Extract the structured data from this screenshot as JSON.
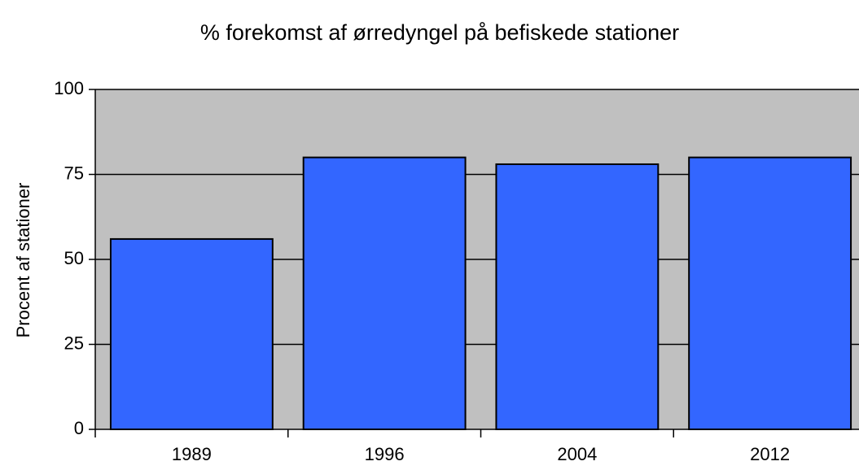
{
  "chart_data": {
    "type": "bar",
    "title": "% forekomst af ørredyngel på befiskede stationer",
    "y_label": "Procent af stationer",
    "categories": [
      "1989",
      "1996",
      "2004",
      "2012"
    ],
    "values": [
      56,
      80,
      78,
      80
    ],
    "color": "#3366ff",
    "background": "#c0c0c0",
    "ylim": [
      0,
      100
    ],
    "yticks": [
      0,
      25,
      50,
      75,
      100
    ],
    "grid": true
  }
}
